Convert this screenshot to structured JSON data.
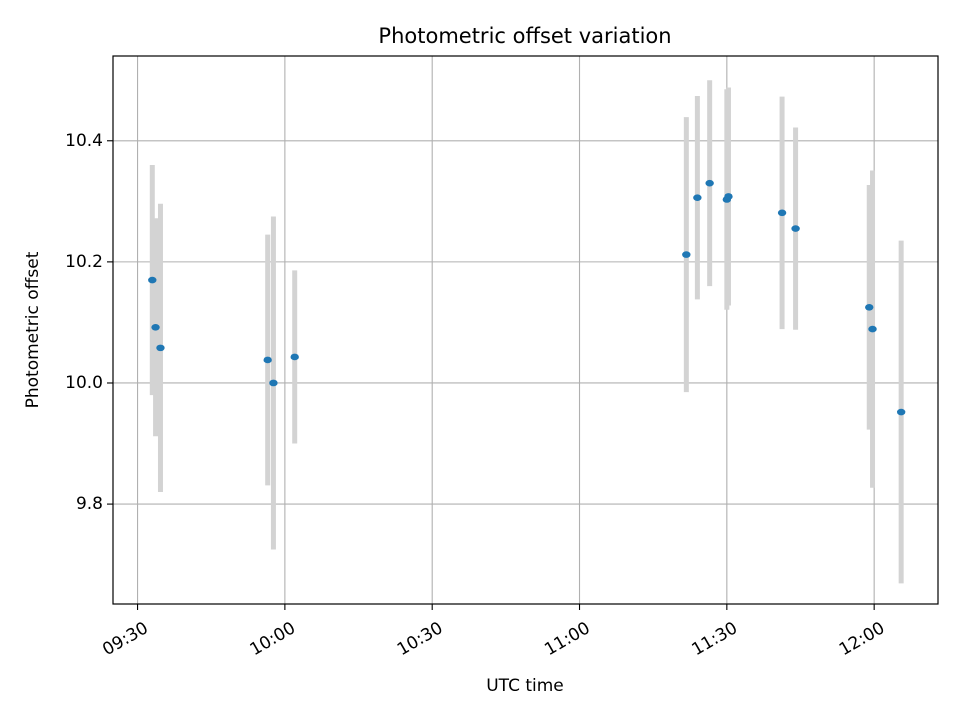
{
  "chart_data": {
    "type": "scatter",
    "title": "Photometric offset variation",
    "xlabel": "UTC time",
    "ylabel": "Photometric offset",
    "xlim": [
      "09:25",
      "12:13"
    ],
    "ylim": [
      9.635,
      10.54
    ],
    "x_ticks": [
      "09:30",
      "10:00",
      "10:30",
      "11:00",
      "11:30",
      "12:00"
    ],
    "y_ticks": [
      9.8,
      10.0,
      10.2,
      10.4
    ],
    "y_tick_labels": [
      "9.8",
      "10.0",
      "10.2",
      "10.4"
    ],
    "grid": true,
    "legend": "none",
    "series": [
      {
        "marker_color": "#1f77b4",
        "errorbar_color": "#d3d3d3",
        "points": [
          {
            "x": "09:33",
            "y": 10.17,
            "err": 0.19
          },
          {
            "x": "09:33:40",
            "y": 10.092,
            "err": 0.18
          },
          {
            "x": "09:34:40",
            "y": 10.058,
            "err": 0.238
          },
          {
            "x": "09:56:30",
            "y": 10.038,
            "err": 0.207
          },
          {
            "x": "09:57:40",
            "y": 10.0,
            "err": 0.275
          },
          {
            "x": "10:02",
            "y": 10.043,
            "err": 0.143
          },
          {
            "x": "11:21:45",
            "y": 10.212,
            "err": 0.227
          },
          {
            "x": "11:24",
            "y": 10.306,
            "err": 0.168
          },
          {
            "x": "11:26:30",
            "y": 10.33,
            "err": 0.17
          },
          {
            "x": "11:30",
            "y": 10.303,
            "err": 0.182
          },
          {
            "x": "11:30:20",
            "y": 10.308,
            "err": 0.18
          },
          {
            "x": "11:41:15",
            "y": 10.281,
            "err": 0.192
          },
          {
            "x": "11:44",
            "y": 10.255,
            "err": 0.167
          },
          {
            "x": "11:59",
            "y": 10.125,
            "err": 0.202
          },
          {
            "x": "11:59:40",
            "y": 10.089,
            "err": 0.262
          },
          {
            "x": "12:05:30",
            "y": 9.952,
            "err": 0.283
          }
        ]
      }
    ]
  }
}
